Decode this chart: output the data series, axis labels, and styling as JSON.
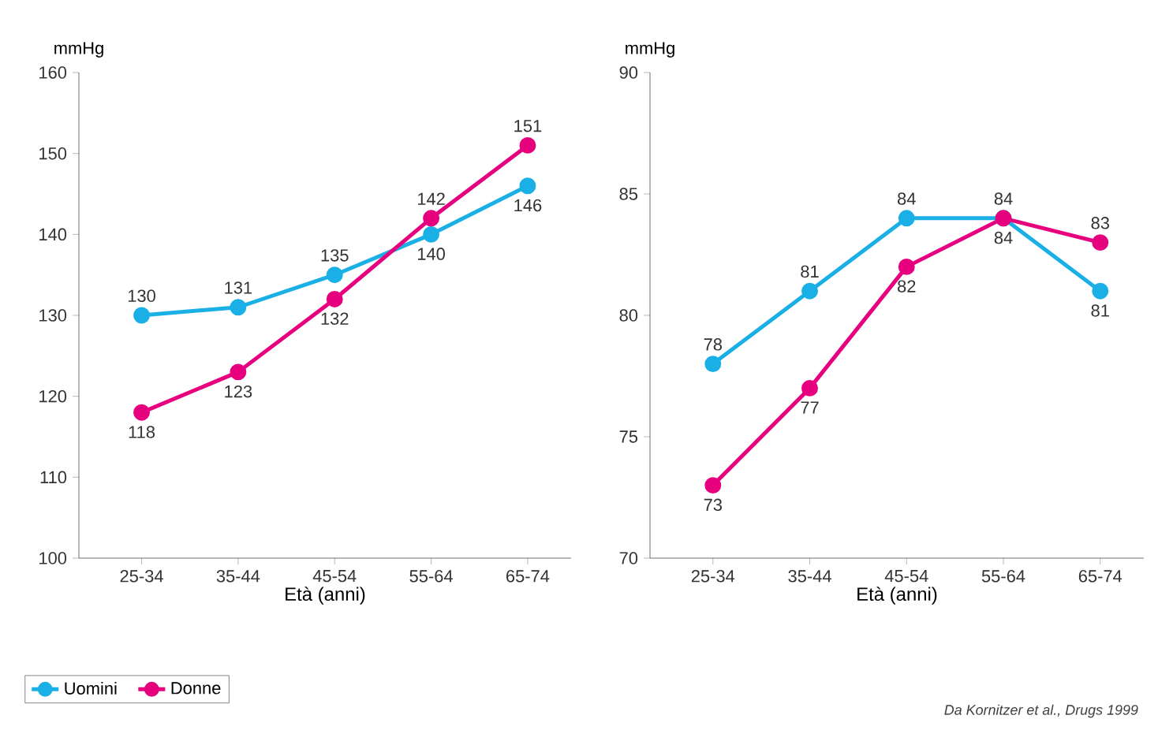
{
  "chart_data": [
    {
      "type": "line",
      "categories": [
        "25-34",
        "35-44",
        "45-54",
        "55-64",
        "65-74"
      ],
      "ylim": [
        100,
        160
      ],
      "yticks": [
        100,
        110,
        120,
        130,
        140,
        150,
        160
      ],
      "xlabel": "Età (anni)",
      "ylabel": "mmHg",
      "marker": "circle",
      "data_labels": true,
      "legend": "bottom left",
      "series": [
        {
          "name": "Uomini",
          "color": "#1ab0e6",
          "values": [
            130,
            131,
            135,
            140,
            146
          ]
        },
        {
          "name": "Donne",
          "color": "#e6007e",
          "values": [
            118,
            123,
            132,
            142,
            151
          ]
        }
      ]
    },
    {
      "type": "line",
      "categories": [
        "25-34",
        "35-44",
        "45-54",
        "55-64",
        "65-74"
      ],
      "ylim": [
        70,
        90
      ],
      "yticks": [
        70,
        75,
        80,
        85,
        90
      ],
      "xlabel": "Età (anni)",
      "ylabel": "mmHg",
      "marker": "circle",
      "data_labels": true,
      "annotations": [
        "Da Kornitzer et al., Drugs 1999"
      ],
      "series": [
        {
          "color": "#1ab0e6",
          "values": [
            78,
            81,
            84,
            84,
            81
          ]
        },
        {
          "color": "#e6007e",
          "values": [
            73,
            77,
            82,
            84,
            83
          ]
        }
      ]
    }
  ]
}
